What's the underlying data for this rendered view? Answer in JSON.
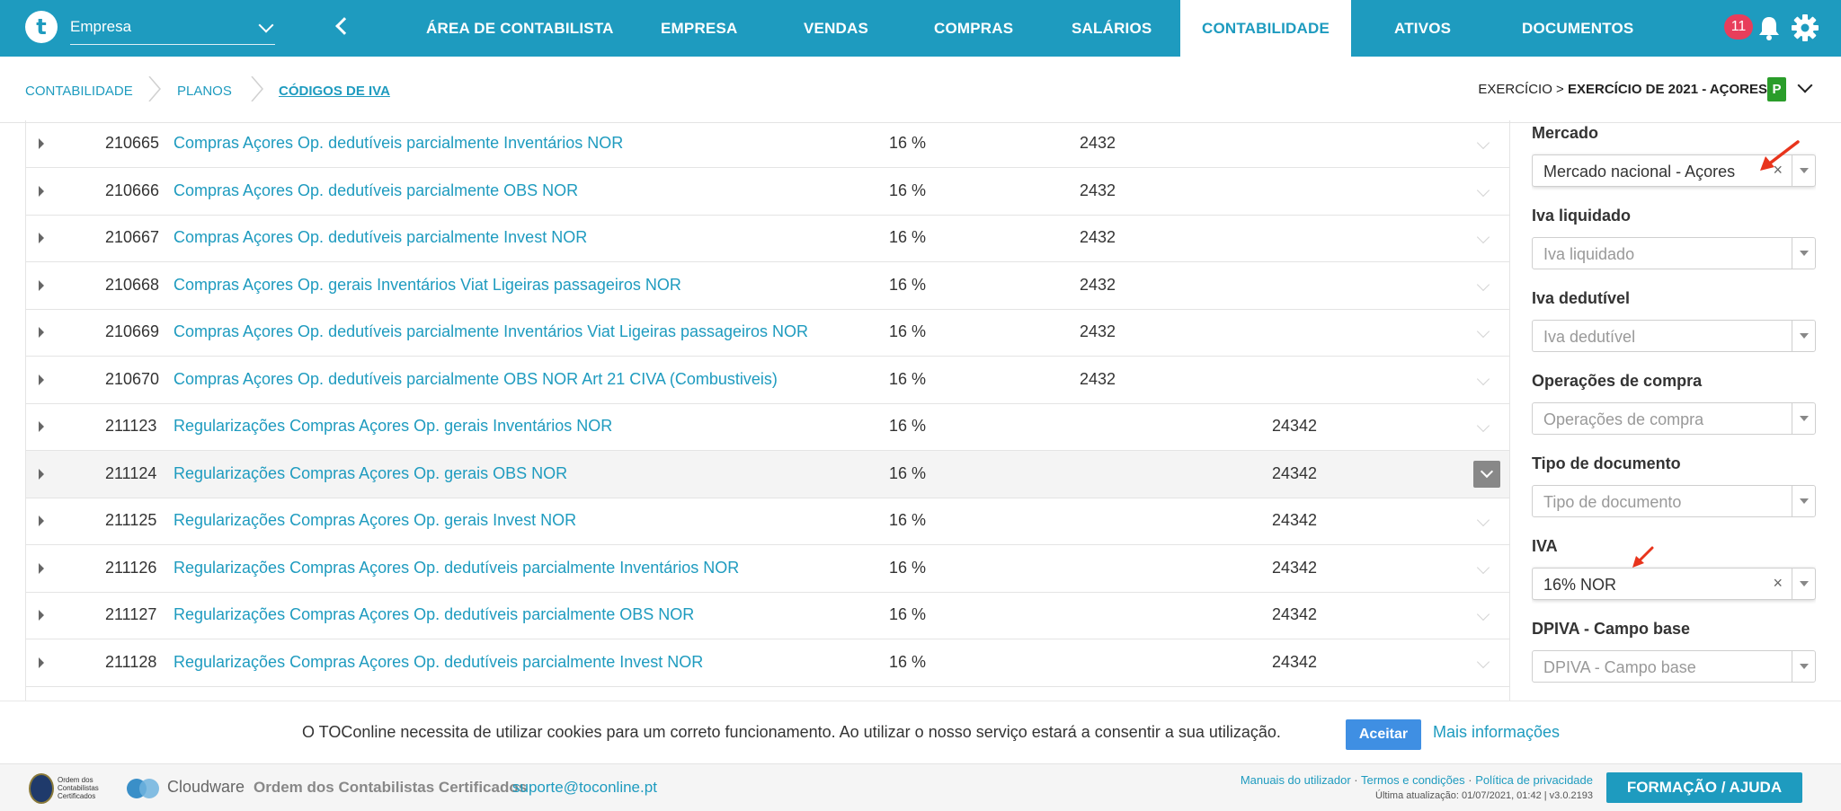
{
  "topbar": {
    "logo_letter": "t",
    "company_select_value": "Empresa",
    "nav": [
      {
        "label": "ÁREA DE CONTABILISTA",
        "active": false
      },
      {
        "label": "EMPRESA",
        "active": false
      },
      {
        "label": "VENDAS",
        "active": false
      },
      {
        "label": "COMPRAS",
        "active": false
      },
      {
        "label": "SALÁRIOS",
        "active": false
      },
      {
        "label": "CONTABILIDADE",
        "active": true
      },
      {
        "label": "ATIVOS",
        "active": false
      },
      {
        "label": "DOCUMENTOS",
        "active": false
      }
    ],
    "notification_count": "11",
    "icons": [
      "back-arrow-icon",
      "bell-icon",
      "gear-icon"
    ]
  },
  "breadcrumb": {
    "items": [
      "CONTABILIDADE",
      "PLANOS",
      "CÓDIGOS DE IVA"
    ],
    "exercise_prefix": "EXERCÍCIO > ",
    "exercise_value": "EXERCÍCIO DE 2021 - AÇORES",
    "exercise_badge": "P"
  },
  "table": {
    "rows": [
      {
        "code": "210665",
        "description": "Compras Açores Op. dedutíveis parcialmente Inventários NOR",
        "rate": "16 %",
        "account_a": "2432",
        "account_b": ""
      },
      {
        "code": "210666",
        "description": "Compras Açores Op. dedutíveis parcialmente OBS NOR",
        "rate": "16 %",
        "account_a": "2432",
        "account_b": ""
      },
      {
        "code": "210667",
        "description": "Compras Açores Op. dedutíveis parcialmente Invest NOR",
        "rate": "16 %",
        "account_a": "2432",
        "account_b": ""
      },
      {
        "code": "210668",
        "description": "Compras Açores Op. gerais Inventários Viat Ligeiras passageiros NOR",
        "rate": "16 %",
        "account_a": "2432",
        "account_b": ""
      },
      {
        "code": "210669",
        "description": "Compras Açores Op. dedutíveis parcialmente Inventários Viat Ligeiras passageiros NOR",
        "rate": "16 %",
        "account_a": "2432",
        "account_b": ""
      },
      {
        "code": "210670",
        "description": "Compras Açores Op. dedutíveis parcialmente OBS NOR Art 21 CIVA (Combustiveis)",
        "rate": "16 %",
        "account_a": "2432",
        "account_b": ""
      },
      {
        "code": "211123",
        "description": "Regularizações Compras Açores Op. gerais Inventários NOR",
        "rate": "16 %",
        "account_a": "",
        "account_b": "24342"
      },
      {
        "code": "211124",
        "description": "Regularizações Compras Açores Op. gerais OBS NOR",
        "rate": "16 %",
        "account_a": "",
        "account_b": "24342"
      },
      {
        "code": "211125",
        "description": "Regularizações Compras Açores Op. gerais Invest NOR",
        "rate": "16 %",
        "account_a": "",
        "account_b": "24342"
      },
      {
        "code": "211126",
        "description": "Regularizações Compras Açores Op. dedutíveis parcialmente Inventários NOR",
        "rate": "16 %",
        "account_a": "",
        "account_b": "24342"
      },
      {
        "code": "211127",
        "description": "Regularizações Compras Açores Op. dedutíveis parcialmente OBS NOR",
        "rate": "16 %",
        "account_a": "",
        "account_b": "24342"
      },
      {
        "code": "211128",
        "description": "Regularizações Compras Açores Op. dedutíveis parcialmente Invest NOR",
        "rate": "16 %",
        "account_a": "",
        "account_b": "24342"
      }
    ],
    "highlighted_row_code": "211124"
  },
  "filters": {
    "mercado": {
      "label": "Mercado",
      "value": "Mercado nacional - Açores"
    },
    "iva_liquidado": {
      "label": "Iva liquidado",
      "placeholder": "Iva liquidado"
    },
    "iva_dedutivel": {
      "label": "Iva dedutível",
      "placeholder": "Iva dedutível"
    },
    "operacoes_compra": {
      "label": "Operações de compra",
      "placeholder": "Operações de compra"
    },
    "tipo_documento": {
      "label": "Tipo de documento",
      "placeholder": "Tipo de documento"
    },
    "iva": {
      "label": "IVA",
      "value": "16% NOR"
    },
    "dpiva": {
      "label": "DPIVA - Campo base",
      "placeholder": "DPIVA - Campo base"
    },
    "clear_glyph": "×"
  },
  "cookie_bar": {
    "text": "O TOConline necessita de utilizar cookies para um correto funcionamento. Ao utilizar o nosso serviço estará a consentir a sua utilização.",
    "accept_label": "Aceitar",
    "more_info_label": "Mais informações"
  },
  "footer": {
    "occ_logo_text": "Ordem dos Contabilistas Certificados",
    "cloudware_label": "Cloudware",
    "occ_label": "Ordem dos Contabilistas Certificados",
    "support_email": "suporte@toconline.pt",
    "links": [
      "Manuais do utilizador",
      "Termos e condições",
      "Política de privacidade"
    ],
    "link_separator": " · ",
    "version_text": "Última atualização: 01/07/2021, 01:42 | v3.0.2193",
    "help_label": "FORMAÇÃO / AJUDA"
  },
  "colors": {
    "brand": "#1e9bbf",
    "badge": "#e83e5b",
    "accept": "#3f8fe3",
    "exercise_badge": "#2a9d2a",
    "annotation_arrow": "#e8341c"
  }
}
